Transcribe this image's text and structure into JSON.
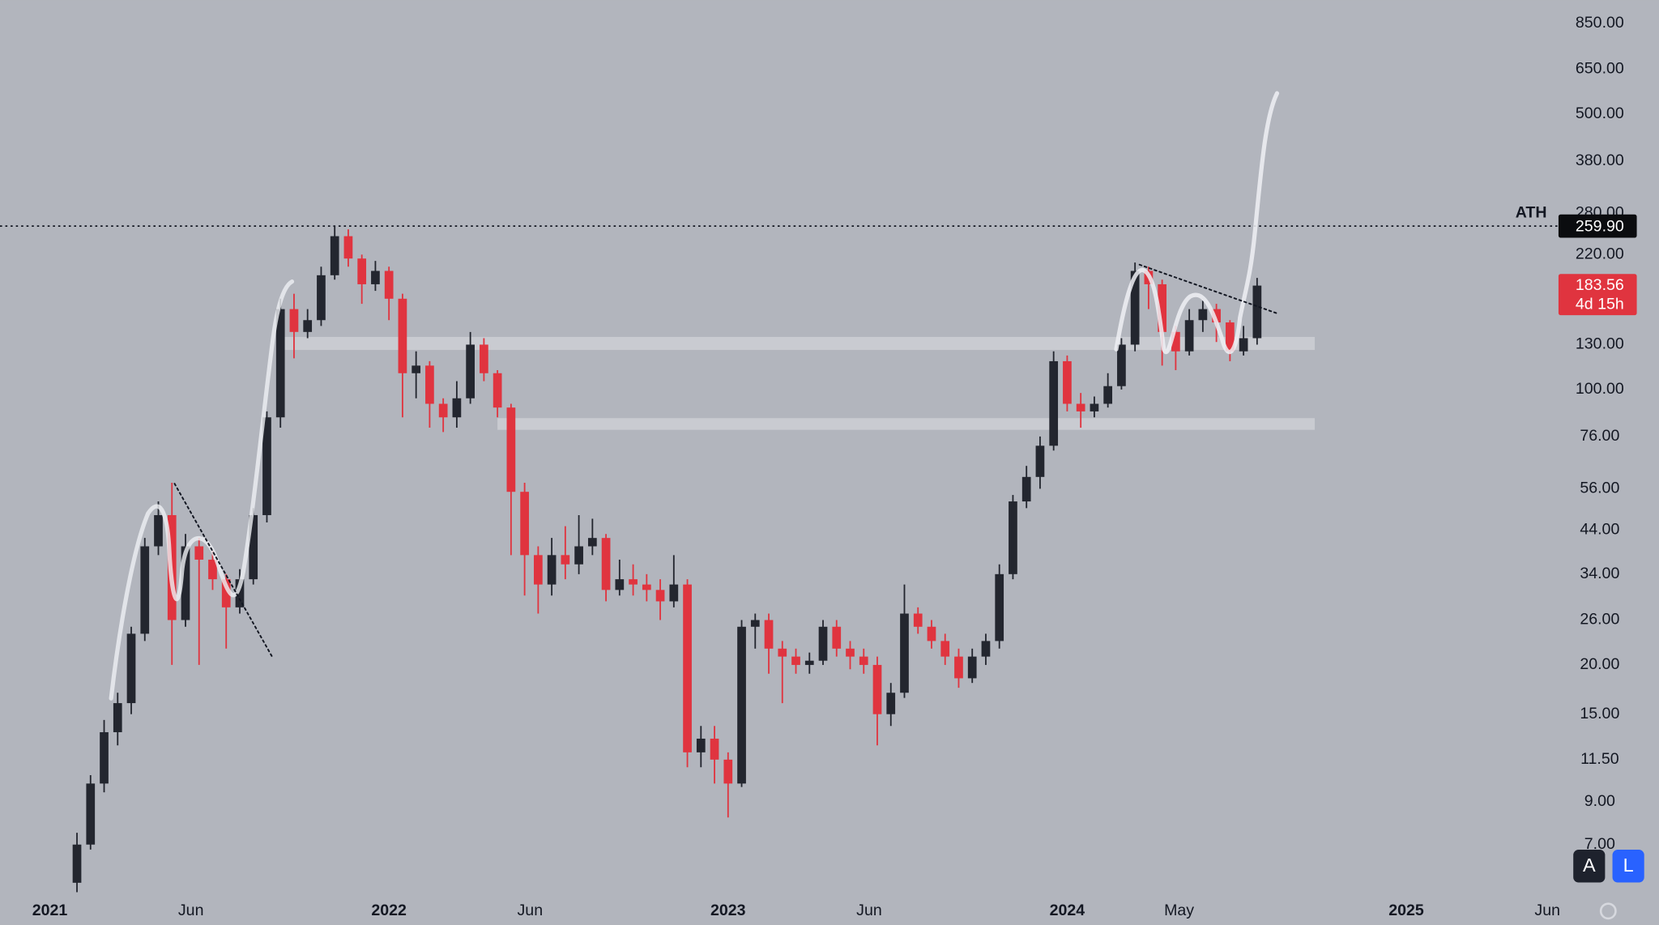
{
  "chart_data": {
    "type": "candlestick",
    "log_scale": true,
    "grid": false,
    "background": "#b2b5bd",
    "up_color": "#23262f",
    "down_color": "#e0343f",
    "xlim": [
      2020.853,
      2025.455
    ],
    "ylim": [
      5.24,
      973
    ],
    "xticks": [
      2021,
      {
        "value": 2021.416,
        "label": "Jun"
      },
      2022,
      {
        "value": 2022.416,
        "label": "Jun"
      },
      2023,
      {
        "value": 2023.416,
        "label": "Jun"
      },
      2024,
      {
        "value": 2024.33,
        "label": "May"
      },
      2025,
      {
        "value": 2025.416,
        "label": "Jun"
      }
    ],
    "yticks": [
      {
        "value": 850,
        "label": "850.00"
      },
      {
        "value": 650,
        "label": "650.00"
      },
      {
        "value": 500,
        "label": "500.00"
      },
      {
        "value": 380,
        "label": "380.00"
      },
      {
        "value": 280,
        "label": "280.00"
      },
      {
        "value": 220,
        "label": "220.00"
      },
      {
        "value": 130,
        "label": "130.00"
      },
      {
        "value": 100,
        "label": "100.00"
      },
      {
        "value": 76,
        "label": "76.00"
      },
      {
        "value": 56,
        "label": "56.00"
      },
      {
        "value": 44,
        "label": "44.00"
      },
      {
        "value": 34,
        "label": "34.00"
      },
      {
        "value": 26,
        "label": "26.00"
      },
      {
        "value": 20,
        "label": "20.00"
      },
      {
        "value": 15,
        "label": "15.00"
      },
      {
        "value": 11.5,
        "label": "11.50"
      },
      {
        "value": 9,
        "label": "9.00"
      },
      {
        "value": 7,
        "label": "7.00"
      }
    ],
    "x": [
      2021.08,
      2021.12,
      2021.16,
      2021.2,
      2021.24,
      2021.28,
      2021.32,
      2021.36,
      2021.4,
      2021.44,
      2021.48,
      2021.52,
      2021.56,
      2021.6,
      2021.64,
      2021.68,
      2021.72,
      2021.76,
      2021.8,
      2021.84,
      2021.88,
      2021.92,
      2021.96,
      2022,
      2022.04,
      2022.08,
      2022.12,
      2022.16,
      2022.2,
      2022.24,
      2022.28,
      2022.32,
      2022.36,
      2022.4,
      2022.44,
      2022.48,
      2022.52,
      2022.56,
      2022.6,
      2022.64,
      2022.68,
      2022.72,
      2022.76,
      2022.8,
      2022.84,
      2022.88,
      2022.92,
      2022.96,
      2023,
      2023.04,
      2023.08,
      2023.12,
      2023.16,
      2023.2,
      2023.24,
      2023.28,
      2023.32,
      2023.36,
      2023.4,
      2023.44,
      2023.48,
      2023.52,
      2023.56,
      2023.6,
      2023.64,
      2023.68,
      2023.72,
      2023.76,
      2023.8,
      2023.84,
      2023.88,
      2023.92,
      2023.96,
      2024,
      2024.04,
      2024.08,
      2024.12,
      2024.16,
      2024.2,
      2024.24,
      2024.28,
      2024.32,
      2024.36,
      2024.4,
      2024.44,
      2024.48,
      2024.52,
      2024.56
    ],
    "open": [
      5.6,
      7,
      10,
      13.5,
      16,
      24,
      40,
      48,
      26,
      40,
      37,
      33,
      28,
      33,
      48,
      85,
      160,
      140,
      150,
      195,
      245,
      215,
      185,
      200,
      170,
      110,
      115,
      92,
      85,
      95,
      130,
      110,
      90,
      55,
      38,
      32,
      38,
      36,
      40,
      42,
      31,
      33,
      32,
      31,
      29,
      32,
      12,
      13,
      11.5,
      10,
      25,
      26,
      22,
      21,
      20,
      20.5,
      25,
      22,
      21,
      20,
      15,
      17,
      27,
      25,
      23,
      21,
      18.5,
      21,
      23,
      34,
      52,
      60,
      72,
      118,
      92,
      88,
      92,
      102,
      130,
      200,
      185,
      140,
      125,
      150,
      160,
      148,
      125,
      135
    ],
    "high": [
      7.5,
      10.5,
      14.5,
      17,
      25,
      42,
      52,
      58,
      43,
      42,
      39,
      34,
      35,
      50,
      88,
      170,
      175,
      160,
      205,
      259.9,
      255,
      220,
      212,
      205,
      175,
      125,
      118,
      95,
      105,
      140,
      135,
      112,
      92,
      58,
      40,
      42,
      45,
      48,
      47,
      43,
      37,
      36,
      34,
      33,
      38,
      33,
      14,
      14,
      12,
      26,
      27,
      27,
      23,
      22,
      21.5,
      26,
      26,
      23,
      22,
      21,
      18,
      32,
      28,
      26,
      24,
      22,
      22,
      24,
      36,
      54,
      64,
      76,
      125,
      122,
      98,
      96,
      110,
      135,
      210,
      205,
      190,
      145,
      160,
      168,
      165,
      150,
      145,
      192
    ],
    "low": [
      5.3,
      6.8,
      9.5,
      12.5,
      15,
      23,
      38,
      20,
      25,
      20,
      31,
      22,
      27,
      32,
      46,
      80,
      120,
      135,
      145,
      190,
      205,
      165,
      178,
      150,
      85,
      95,
      80,
      78,
      80,
      92,
      105,
      85,
      38,
      30,
      27,
      30,
      33,
      34,
      38,
      29,
      30,
      30,
      29,
      26,
      28,
      11,
      11,
      10,
      8.2,
      9.8,
      22,
      19,
      16,
      19,
      19,
      20,
      21,
      19.5,
      19,
      12.5,
      14,
      16.5,
      24,
      22,
      20,
      17.5,
      18,
      20,
      22,
      33,
      50,
      56,
      70,
      88,
      80,
      85,
      90,
      100,
      125,
      160,
      115,
      112,
      122,
      140,
      132,
      118,
      122,
      130
    ],
    "close": [
      7,
      10,
      13.5,
      16,
      24,
      40,
      48,
      26,
      40,
      37,
      33,
      28,
      33,
      48,
      85,
      160,
      140,
      150,
      195,
      245,
      215,
      185,
      200,
      170,
      110,
      115,
      92,
      85,
      95,
      130,
      110,
      90,
      55,
      38,
      32,
      38,
      36,
      40,
      42,
      31,
      33,
      32,
      31,
      29,
      32,
      12,
      13,
      11.5,
      10,
      25,
      26,
      22,
      21,
      20,
      20.5,
      25,
      22,
      21,
      20,
      15,
      17,
      27,
      25,
      23,
      21,
      18.5,
      21,
      23,
      34,
      52,
      60,
      72,
      118,
      92,
      88,
      92,
      102,
      130,
      200,
      185,
      140,
      125,
      150,
      160,
      148,
      125,
      135,
      183.56
    ],
    "zones": [
      {
        "low": 126,
        "high": 136,
        "start": 2021.67,
        "end": 2024.73
      },
      {
        "low": 79,
        "high": 84.6,
        "start": 2022.32,
        "end": 2024.73
      }
    ],
    "ath": {
      "name": "ATH",
      "value": 259.9,
      "label": "259.90"
    },
    "countdown": "4d 15h"
  },
  "toolbar": {
    "buttons": [
      "A",
      "L"
    ]
  }
}
